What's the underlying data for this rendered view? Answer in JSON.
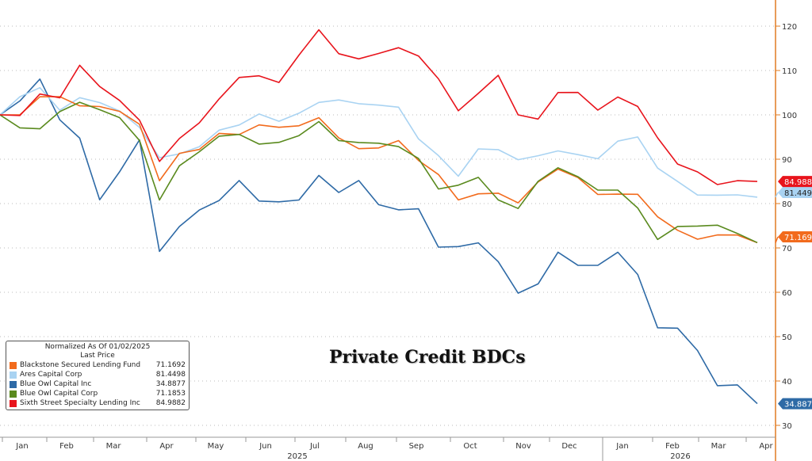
{
  "chart_data": {
    "type": "line",
    "title": "Private Credit BDCs",
    "legend_title": "Normalized As Of 01/02/2025",
    "legend_subtitle": "Last Price",
    "legend_position": "bottom-left",
    "ylim": [
      30,
      125
    ],
    "yticks": [
      "30",
      "40",
      "50",
      "60",
      "70",
      "80",
      "90",
      "100",
      "110",
      "120"
    ],
    "xticks": [
      "Jan",
      "Feb",
      "Mar",
      "Apr",
      "May",
      "Jun",
      "Jul",
      "Aug",
      "Sep",
      "Oct",
      "Nov",
      "Dec",
      "Jan",
      "Feb",
      "Mar",
      "Apr"
    ],
    "years": [
      "2025",
      "2026"
    ],
    "series": [
      {
        "name": "Blackstone Secured Lending Fund",
        "last": "71.1692",
        "color": "#f26b1d",
        "values": [
          100,
          99,
          103,
          104,
          103,
          103,
          101,
          97,
          84,
          91,
          93,
          97,
          96,
          97,
          96,
          97,
          100,
          96,
          93,
          92,
          93,
          89,
          87,
          82,
          83,
          82,
          79,
          84,
          88,
          87,
          83,
          82,
          81,
          76,
          74,
          73,
          74,
          73,
          71.17
        ]
      },
      {
        "name": "Ares Capital Corp",
        "last": "81.4498",
        "color": "#a9d3f2",
        "values": [
          100,
          103,
          106,
          102,
          105,
          103,
          100,
          96,
          90,
          92,
          94,
          97,
          97,
          99,
          98,
          101,
          104,
          104,
          102,
          101,
          101,
          95,
          92,
          87,
          92,
          91,
          89,
          91,
          93,
          92,
          90,
          93,
          94,
          88,
          86,
          83,
          82,
          81,
          81.45
        ]
      },
      {
        "name": "Blue Owl Capital Inc",
        "last": "34.8877",
        "color": "#2e6aa6",
        "values": [
          100,
          103,
          109,
          100,
          95,
          80,
          86,
          94,
          70,
          76,
          79,
          80,
          84,
          80,
          81,
          82,
          87,
          82,
          84,
          79,
          79,
          80,
          71,
          70,
          70,
          66,
          60,
          63,
          70,
          66,
          65,
          68,
          64,
          53,
          53,
          47,
          38,
          38,
          34.89
        ]
      },
      {
        "name": "Blue Owl Capital Corp",
        "last": "71.1853",
        "color": "#5a8a1e",
        "values": [
          100,
          98,
          98,
          101,
          102,
          100,
          99,
          95,
          82,
          89,
          91,
          94,
          95,
          94,
          95,
          96,
          98,
          93,
          93,
          94,
          94,
          91,
          83,
          83,
          85,
          81,
          80,
          86,
          88,
          85,
          82,
          83,
          80,
          73,
          75,
          74,
          74,
          73,
          71.19
        ]
      },
      {
        "name": "Sixth Street Specialty Lending Inc",
        "last": "84.9882",
        "color": "#e8141c",
        "values": [
          100,
          101,
          105,
          103,
          110,
          106,
          104,
          100,
          90,
          94,
          97,
          103,
          109,
          110,
          108,
          113,
          118,
          113,
          113,
          115,
          116,
          113,
          107,
          100,
          105,
          110,
          101,
          99,
          104,
          104,
          101,
          105,
          103,
          95,
          88,
          86,
          84,
          86,
          84.99
        ]
      }
    ]
  }
}
